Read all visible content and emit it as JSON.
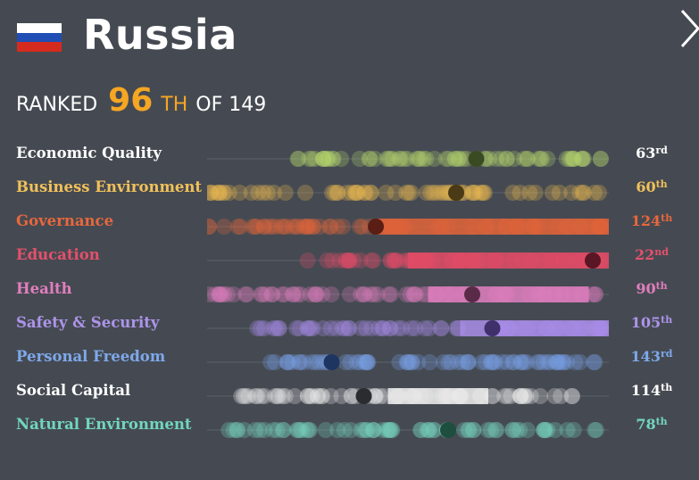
{
  "header": {
    "country": "Russia",
    "flag_colors": [
      "#ffffff",
      "#1f4fb5",
      "#d52b1e"
    ],
    "close_icon": "close-chevron-icon",
    "ranked_label": "RANKED",
    "rank_number": "96",
    "rank_suffix": "TH",
    "of_label": "OF 149"
  },
  "pillars": [
    {
      "name": "Economic Quality",
      "color": "#b5d56a",
      "label_color": "#ffffff",
      "rank": "63",
      "suffix": "rd",
      "highlight": 0.67,
      "range": [
        0.22,
        1.0
      ],
      "fill": null,
      "dark": "#3a4a22"
    },
    {
      "name": "Business Environment",
      "color": "#e9b84f",
      "label_color": "#f1c15a",
      "rank": "60",
      "suffix": "th",
      "highlight": 0.62,
      "range": [
        0.0,
        1.0
      ],
      "fill": null,
      "dark": "#4a3a15"
    },
    {
      "name": "Governance",
      "color": "#e3643a",
      "label_color": "#e7673d",
      "rank": "124",
      "suffix": "th",
      "highlight": 0.42,
      "range": [
        0.0,
        1.0
      ],
      "fill": [
        0.42,
        1.0
      ],
      "dark": "#5a1e14"
    },
    {
      "name": "Education",
      "color": "#e44b67",
      "label_color": "#e5506b",
      "rank": "22",
      "suffix": "nd",
      "highlight": 0.96,
      "range": [
        0.25,
        1.0
      ],
      "fill": [
        0.5,
        1.0
      ],
      "dark": "#5a1624"
    },
    {
      "name": "Health",
      "color": "#e07fbf",
      "label_color": "#e17ebd",
      "rank": "90",
      "suffix": "th",
      "highlight": 0.66,
      "range": [
        0.0,
        0.97
      ],
      "fill": [
        0.55,
        0.95
      ],
      "dark": "#5a2a48"
    },
    {
      "name": "Safety & Security",
      "color": "#a98de8",
      "label_color": "#ad94ea",
      "rank": "105",
      "suffix": "th",
      "highlight": 0.71,
      "range": [
        0.12,
        1.0
      ],
      "fill": [
        0.63,
        1.0
      ],
      "dark": "#3f2f6a"
    },
    {
      "name": "Personal Freedom",
      "color": "#7ba2e8",
      "label_color": "#7ea8ea",
      "rank": "143",
      "suffix": "rd",
      "highlight": 0.31,
      "range": [
        0.15,
        0.97
      ],
      "fill": null,
      "dark": "#1e3562"
    },
    {
      "name": "Social Capital",
      "color": "#eeeeee",
      "label_color": "#ffffff",
      "rank": "114",
      "suffix": "th",
      "highlight": 0.39,
      "range": [
        0.05,
        0.92
      ],
      "fill": [
        0.45,
        0.7
      ],
      "dark": "#2a2c30"
    },
    {
      "name": "Natural Environment",
      "color": "#76d4bd",
      "label_color": "#72d6be",
      "rank": "78",
      "suffix": "th",
      "highlight": 0.6,
      "range": [
        0.02,
        0.98
      ],
      "fill": null,
      "dark": "#1d4e3e"
    }
  ]
}
